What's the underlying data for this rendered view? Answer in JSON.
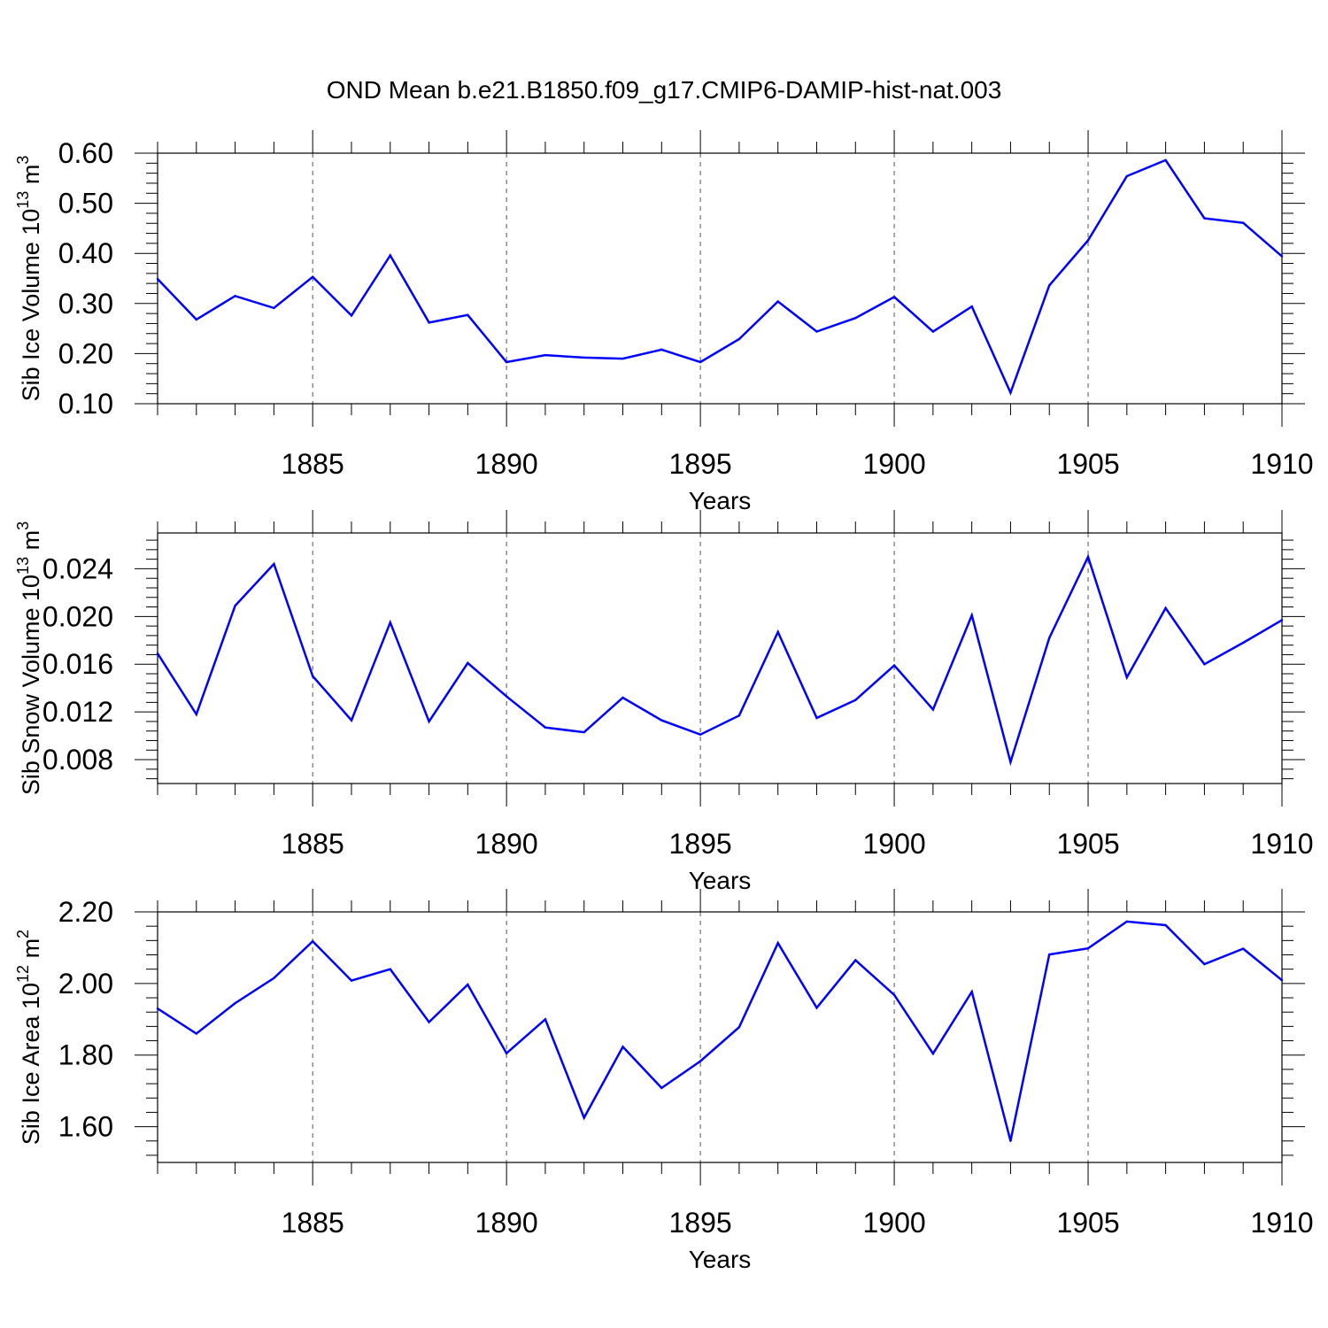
{
  "title": "OND Mean b.e21.B1850.f09_g17.CMIP6-DAMIP-hist-nat.003",
  "colors": {
    "line": "#0000ff",
    "axis": "#000000",
    "grid": "#555555"
  },
  "chart_data": [
    {
      "type": "line",
      "ylabel_base": "Sib Ice Volume 10",
      "ylabel_exp": "13",
      "ylabel_unit": " m",
      "ylabel_unit_exp": "3",
      "xlabel": "Years",
      "xlim": [
        1881,
        1910
      ],
      "ylim": [
        0.1,
        0.6
      ],
      "yticks": [
        0.1,
        0.2,
        0.3,
        0.4,
        0.5,
        0.6
      ],
      "ytick_labels": [
        "0.10",
        "0.20",
        "0.30",
        "0.40",
        "0.50",
        "0.60"
      ],
      "xticks": [
        1885,
        1890,
        1895,
        1900,
        1905,
        1910
      ],
      "xtick_labels": [
        "1885",
        "1890",
        "1895",
        "1900",
        "1905",
        "1910"
      ],
      "x": [
        1881,
        1882,
        1883,
        1884,
        1885,
        1886,
        1887,
        1888,
        1889,
        1890,
        1891,
        1892,
        1893,
        1894,
        1895,
        1896,
        1897,
        1898,
        1899,
        1900,
        1901,
        1902,
        1903,
        1904,
        1905,
        1906,
        1907,
        1908,
        1909,
        1910
      ],
      "values": [
        0.349,
        0.268,
        0.315,
        0.291,
        0.353,
        0.276,
        0.396,
        0.262,
        0.277,
        0.183,
        0.197,
        0.192,
        0.19,
        0.208,
        0.183,
        0.229,
        0.304,
        0.244,
        0.271,
        0.313,
        0.244,
        0.294,
        0.122,
        0.336,
        0.426,
        0.554,
        0.586,
        0.47,
        0.461,
        0.394
      ]
    },
    {
      "type": "line",
      "ylabel_base": "Sib Snow Volume 10",
      "ylabel_exp": "13",
      "ylabel_unit": " m",
      "ylabel_unit_exp": "3",
      "xlabel": "Years",
      "xlim": [
        1881,
        1910
      ],
      "ylim": [
        0.006,
        0.027
      ],
      "yticks": [
        0.008,
        0.012,
        0.016,
        0.02,
        0.024
      ],
      "ytick_labels": [
        "0.008",
        "0.012",
        "0.016",
        "0.020",
        "0.024"
      ],
      "xticks": [
        1885,
        1890,
        1895,
        1900,
        1905,
        1910
      ],
      "xtick_labels": [
        "1885",
        "1890",
        "1895",
        "1900",
        "1905",
        "1910"
      ],
      "x": [
        1881,
        1882,
        1883,
        1884,
        1885,
        1886,
        1887,
        1888,
        1889,
        1890,
        1891,
        1892,
        1893,
        1894,
        1895,
        1896,
        1897,
        1898,
        1899,
        1900,
        1901,
        1902,
        1903,
        1904,
        1905,
        1906,
        1907,
        1908,
        1909,
        1910
      ],
      "values": [
        0.0169,
        0.0118,
        0.0209,
        0.0244,
        0.015,
        0.0113,
        0.0195,
        0.0112,
        0.0161,
        0.0133,
        0.0107,
        0.0103,
        0.0132,
        0.0113,
        0.0101,
        0.0117,
        0.0187,
        0.0115,
        0.013,
        0.0159,
        0.0122,
        0.0201,
        0.0078,
        0.0182,
        0.025,
        0.0149,
        0.0207,
        0.016,
        0.0178,
        0.0197
      ]
    },
    {
      "type": "line",
      "ylabel_base": "Sib Ice Area 10",
      "ylabel_exp": "12",
      "ylabel_unit": " m",
      "ylabel_unit_exp": "2",
      "xlabel": "Years",
      "xlim": [
        1881,
        1910
      ],
      "ylim": [
        1.5,
        2.2
      ],
      "yticks": [
        1.6,
        1.8,
        2.0,
        2.2
      ],
      "ytick_labels": [
        "1.60",
        "1.80",
        "2.00",
        "2.20"
      ],
      "xticks": [
        1885,
        1890,
        1895,
        1900,
        1905,
        1910
      ],
      "xtick_labels": [
        "1885",
        "1890",
        "1895",
        "1900",
        "1905",
        "1910"
      ],
      "x": [
        1881,
        1882,
        1883,
        1884,
        1885,
        1886,
        1887,
        1888,
        1889,
        1890,
        1891,
        1892,
        1893,
        1894,
        1895,
        1896,
        1897,
        1898,
        1899,
        1900,
        1901,
        1902,
        1903,
        1904,
        1905,
        1906,
        1907,
        1908,
        1909,
        1910
      ],
      "values": [
        1.93,
        1.86,
        1.945,
        2.015,
        2.118,
        2.008,
        2.04,
        1.892,
        1.997,
        1.805,
        1.9,
        1.625,
        1.823,
        1.708,
        1.783,
        1.878,
        2.113,
        1.932,
        2.065,
        1.968,
        1.804,
        1.977,
        1.56,
        2.081,
        2.098,
        2.173,
        2.163,
        2.054,
        2.097,
        2.009
      ]
    }
  ]
}
